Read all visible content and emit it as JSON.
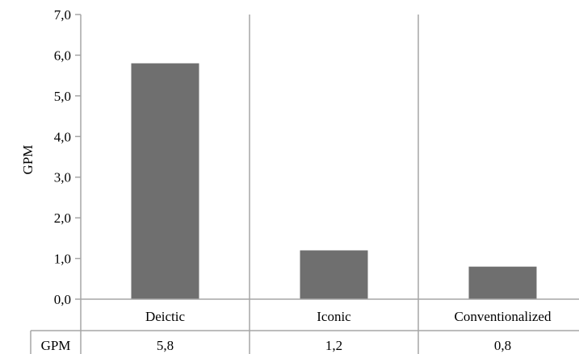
{
  "chart_data": {
    "type": "bar",
    "categories": [
      "Deictic",
      "Iconic",
      "Conventionalized"
    ],
    "series": [
      {
        "name": "GPM",
        "values": [
          5.8,
          1.2,
          0.8
        ]
      }
    ],
    "ylabel": "GPM",
    "ylim": [
      0,
      7
    ],
    "yticks": [
      "0,0",
      "1,0",
      "2,0",
      "3,0",
      "4,0",
      "5,0",
      "6,0",
      "7,0"
    ],
    "table": {
      "row_label": "GPM",
      "values": [
        "5,8",
        "1,2",
        "0,8"
      ]
    },
    "bar_color": "#6f6f6f",
    "grid": false,
    "legend": "none"
  }
}
